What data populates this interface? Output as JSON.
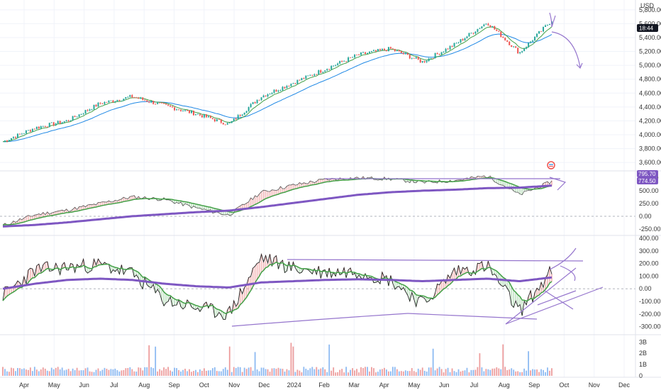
{
  "currency": "USD",
  "colors": {
    "background": "#ffffff",
    "grid": "#f0f3fa",
    "separator": "#e0e3eb",
    "candle_up": "#26a69a",
    "candle_down": "#ef5350",
    "price_line": "#1a1a1a",
    "fast_ma": "#43a047",
    "slow_ma": "#1e88e5",
    "trend_purple": "#7e57c2",
    "annotation": "#9575cd",
    "fill_red": "#ef9a9a",
    "fill_green": "#a5d6a7",
    "vol_blue": "#5c9ded",
    "vol_red": "#e57373",
    "tag_dark": "#131722",
    "tag_purple": "#7e57c2"
  },
  "time_axis": {
    "labels": [
      "Apr",
      "May",
      "Jun",
      "Jul",
      "Aug",
      "Sep",
      "Oct",
      "Nov",
      "Dec",
      "2024",
      "Feb",
      "Mar",
      "Apr",
      "May",
      "Jun",
      "Jul",
      "Aug",
      "Sep",
      "Oct",
      "Nov",
      "Dec"
    ]
  },
  "tags": {
    "price_last": "18:44",
    "pane2_upper": "795.70",
    "pane2_lower": "774.50"
  },
  "chart_data": [
    {
      "type": "line",
      "pane": "price",
      "y_axis_labels": [
        "5,800.00",
        "5,600.00",
        "5,400.00",
        "5,200.00",
        "5,000.00",
        "4,800.00",
        "4,600.00",
        "4,400.00",
        "4,200.00",
        "4,000.00",
        "3,800.00",
        "3,600.00"
      ],
      "y_ticks": [
        5800,
        5600,
        5400,
        5200,
        5000,
        4800,
        4600,
        4400,
        4200,
        4000,
        3800,
        3600
      ],
      "ylim": [
        3530,
        5880
      ],
      "x": [
        "Apr 2023",
        "May 2023",
        "Jun 2023",
        "Jul 2023",
        "Aug 2023",
        "Sep 2023",
        "Oct 2023",
        "Nov 2023",
        "Dec 2023",
        "Jan 2024",
        "Feb 2024",
        "Mar 2024",
        "Apr 2024",
        "May 2024",
        "Jun 2024",
        "Jul 2024",
        "Aug 2024",
        "Sep 2024"
      ],
      "series": [
        {
          "values": [
            3900,
            4100,
            4200,
            4450,
            4550,
            4420,
            4300,
            4150,
            4550,
            4750,
            4950,
            5150,
            5240,
            5050,
            5300,
            5620,
            5180,
            5650
          ]
        }
      ]
    },
    {
      "type": "line",
      "pane": "oscillator_1",
      "y_axis_labels": [
        "750.00",
        "500.00",
        "250.00",
        "0.00",
        "-250.00"
      ],
      "y_ticks": [
        750,
        500,
        250,
        0,
        -250
      ],
      "ylim": [
        -320,
        860
      ],
      "x": [
        "Apr 2023",
        "May 2023",
        "Jun 2023",
        "Jul 2023",
        "Aug 2023",
        "Sep 2023",
        "Oct 2023",
        "Nov 2023",
        "Dec 2023",
        "Jan 2024",
        "Feb 2024",
        "Mar 2024",
        "Apr 2024",
        "May 2024",
        "Jun 2024",
        "Jul 2024",
        "Aug 2024",
        "Sep 2024"
      ],
      "series": [
        {
          "values": [
            -180,
            30,
            120,
            250,
            380,
            330,
            160,
            20,
            470,
            610,
            720,
            750,
            730,
            660,
            700,
            790,
            420,
            680
          ]
        },
        {
          "values": [
            -200,
            -170,
            -120,
            -60,
            0,
            40,
            80,
            110,
            180,
            260,
            340,
            420,
            470,
            500,
            520,
            550,
            560,
            600
          ]
        }
      ]
    },
    {
      "type": "line",
      "pane": "oscillator_2",
      "y_axis_labels": [
        "400.00",
        "300.00",
        "200.00",
        "100.00",
        "0.00",
        "-100.00",
        "-200.00",
        "-300.00"
      ],
      "y_ticks": [
        400,
        300,
        200,
        100,
        0,
        -100,
        -200,
        -300
      ],
      "ylim": [
        -330,
        400
      ],
      "x": [
        "Apr 2023",
        "May 2023",
        "Jun 2023",
        "Jul 2023",
        "Aug 2023",
        "Sep 2023",
        "Oct 2023",
        "Nov 2023",
        "Dec 2023",
        "Jan 2024",
        "Feb 2024",
        "Mar 2024",
        "Apr 2024",
        "May 2024",
        "Jun 2024",
        "Jul 2024",
        "Aug 2024",
        "Sep 2024"
      ],
      "series": [
        {
          "values": [
            -50,
            150,
            170,
            190,
            120,
            -90,
            -150,
            -200,
            250,
            160,
            130,
            140,
            70,
            -120,
            140,
            180,
            -180,
            140
          ]
        },
        {
          "values": [
            0,
            40,
            70,
            80,
            70,
            40,
            20,
            10,
            50,
            60,
            70,
            75,
            70,
            60,
            70,
            80,
            60,
            90
          ]
        }
      ]
    },
    {
      "type": "bar",
      "pane": "volume",
      "y_axis_labels": [
        "3B",
        "2B",
        "1B",
        "0"
      ],
      "y_ticks": [
        3,
        2,
        1,
        0
      ],
      "ylim": [
        0,
        3.4
      ]
    }
  ]
}
